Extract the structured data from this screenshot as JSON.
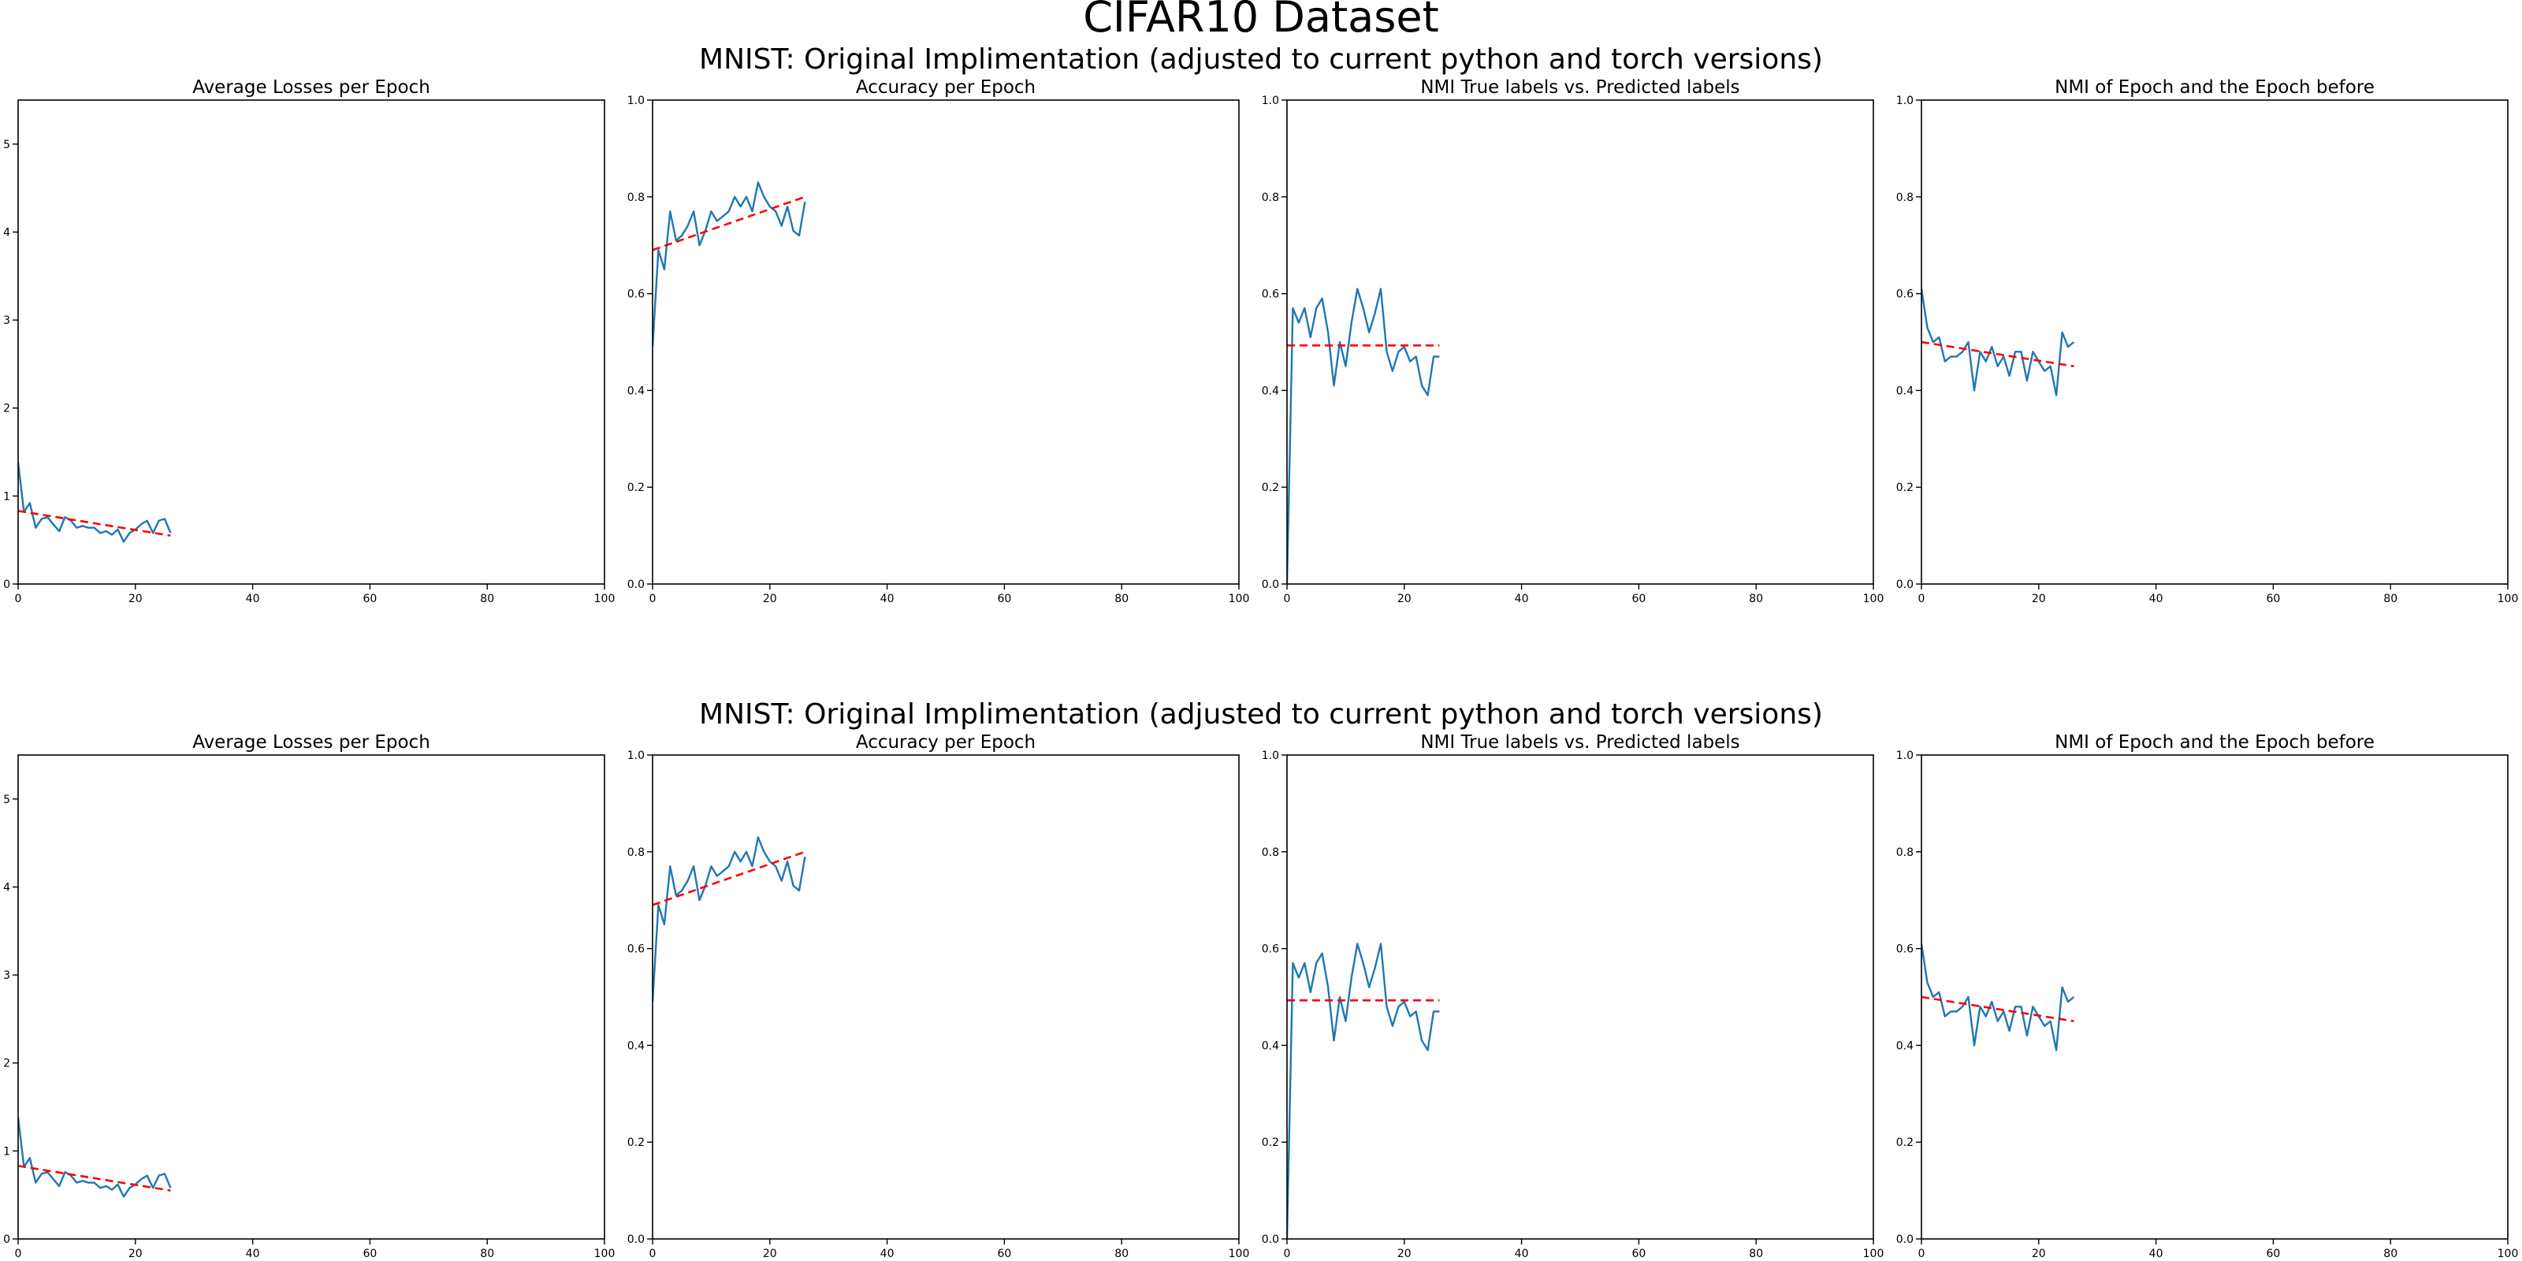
{
  "figure": {
    "title": "CIFAR10 Dataset",
    "rows": [
      {
        "title": "MNIST: Original Implimentation (adjusted to current python and torch versions)"
      },
      {
        "title": "MNIST: Original Implimentation (adjusted to current python and torch versions)"
      }
    ]
  },
  "colors": {
    "series": "#1f77b4",
    "trend": "#ff0000"
  },
  "chart_data": [
    {
      "type": "line",
      "title": "Average Losses per Epoch",
      "xlim": [
        0,
        100
      ],
      "ylim": [
        0,
        5.5
      ],
      "xticks": [
        0,
        20,
        40,
        60,
        80,
        100
      ],
      "yticks": [
        0,
        1,
        2,
        3,
        4,
        5
      ],
      "series": [
        {
          "style": "solid",
          "x": [
            0,
            1,
            2,
            3,
            4,
            5,
            6,
            7,
            8,
            9,
            10,
            11,
            12,
            13,
            14,
            15,
            16,
            17,
            18,
            19,
            20,
            21,
            22,
            23,
            24,
            25,
            26
          ],
          "y": [
            1.38,
            0.82,
            0.92,
            0.64,
            0.74,
            0.76,
            0.68,
            0.6,
            0.76,
            0.72,
            0.64,
            0.66,
            0.64,
            0.64,
            0.58,
            0.6,
            0.56,
            0.62,
            0.48,
            0.58,
            0.62,
            0.68,
            0.72,
            0.58,
            0.72,
            0.74,
            0.58
          ]
        },
        {
          "style": "dashed",
          "x": [
            0,
            26
          ],
          "y": [
            0.83,
            0.55
          ]
        }
      ]
    },
    {
      "type": "line",
      "title": "Accuracy per Epoch",
      "xlim": [
        0,
        100
      ],
      "ylim": [
        0,
        1.0
      ],
      "xticks": [
        0,
        20,
        40,
        60,
        80,
        100
      ],
      "yticks": [
        0.0,
        0.2,
        0.4,
        0.6,
        0.8,
        1.0
      ],
      "series": [
        {
          "style": "solid",
          "x": [
            0,
            1,
            2,
            3,
            4,
            5,
            6,
            7,
            8,
            9,
            10,
            11,
            12,
            13,
            14,
            15,
            16,
            17,
            18,
            19,
            20,
            21,
            22,
            23,
            24,
            25,
            26
          ],
          "y": [
            0.49,
            0.69,
            0.65,
            0.77,
            0.71,
            0.72,
            0.74,
            0.77,
            0.7,
            0.73,
            0.77,
            0.75,
            0.76,
            0.77,
            0.8,
            0.78,
            0.8,
            0.77,
            0.83,
            0.8,
            0.78,
            0.77,
            0.74,
            0.78,
            0.73,
            0.72,
            0.79
          ]
        },
        {
          "style": "dashed",
          "x": [
            0,
            26
          ],
          "y": [
            0.69,
            0.8
          ]
        }
      ]
    },
    {
      "type": "line",
      "title": "NMI True labels vs. Predicted labels",
      "xlim": [
        0,
        100
      ],
      "ylim": [
        0,
        1.0
      ],
      "xticks": [
        0,
        20,
        40,
        60,
        80,
        100
      ],
      "yticks": [
        0.0,
        0.2,
        0.4,
        0.6,
        0.8,
        1.0
      ],
      "series": [
        {
          "style": "solid",
          "x": [
            0,
            1,
            2,
            3,
            4,
            5,
            6,
            7,
            8,
            9,
            10,
            11,
            12,
            13,
            14,
            15,
            16,
            17,
            18,
            19,
            20,
            21,
            22,
            23,
            24,
            25,
            26
          ],
          "y": [
            0.0,
            0.57,
            0.54,
            0.57,
            0.51,
            0.57,
            0.59,
            0.52,
            0.41,
            0.5,
            0.45,
            0.54,
            0.61,
            0.57,
            0.52,
            0.56,
            0.61,
            0.48,
            0.44,
            0.48,
            0.49,
            0.46,
            0.47,
            0.41,
            0.39,
            0.47,
            0.47
          ]
        },
        {
          "style": "dashed",
          "x": [
            0,
            26
          ],
          "y": [
            0.493,
            0.493
          ]
        }
      ]
    },
    {
      "type": "line",
      "title": "NMI of Epoch and the Epoch before",
      "xlim": [
        0,
        100
      ],
      "ylim": [
        0,
        1.0
      ],
      "xticks": [
        0,
        20,
        40,
        60,
        80,
        100
      ],
      "yticks": [
        0.0,
        0.2,
        0.4,
        0.6,
        0.8,
        1.0
      ],
      "series": [
        {
          "style": "solid",
          "x": [
            0,
            1,
            2,
            3,
            4,
            5,
            6,
            7,
            8,
            9,
            10,
            11,
            12,
            13,
            14,
            15,
            16,
            17,
            18,
            19,
            20,
            21,
            22,
            23,
            24,
            25,
            26
          ],
          "y": [
            0.61,
            0.53,
            0.5,
            0.51,
            0.46,
            0.47,
            0.47,
            0.48,
            0.5,
            0.4,
            0.48,
            0.46,
            0.49,
            0.45,
            0.47,
            0.43,
            0.48,
            0.48,
            0.42,
            0.48,
            0.46,
            0.44,
            0.45,
            0.39,
            0.52,
            0.49,
            0.5
          ]
        },
        {
          "style": "dashed",
          "x": [
            0,
            26
          ],
          "y": [
            0.5,
            0.45
          ]
        }
      ]
    },
    {
      "type": "line",
      "title": "Average Losses per Epoch",
      "xlim": [
        0,
        100
      ],
      "ylim": [
        0,
        5.5
      ],
      "xticks": [
        0,
        20,
        40,
        60,
        80,
        100
      ],
      "yticks": [
        0,
        1,
        2,
        3,
        4,
        5
      ],
      "series": [
        {
          "style": "solid",
          "x": [
            0,
            1,
            2,
            3,
            4,
            5,
            6,
            7,
            8,
            9,
            10,
            11,
            12,
            13,
            14,
            15,
            16,
            17,
            18,
            19,
            20,
            21,
            22,
            23,
            24,
            25,
            26
          ],
          "y": [
            1.38,
            0.82,
            0.92,
            0.64,
            0.74,
            0.76,
            0.68,
            0.6,
            0.76,
            0.72,
            0.64,
            0.66,
            0.64,
            0.64,
            0.58,
            0.6,
            0.56,
            0.62,
            0.48,
            0.58,
            0.62,
            0.68,
            0.72,
            0.58,
            0.72,
            0.74,
            0.58
          ]
        },
        {
          "style": "dashed",
          "x": [
            0,
            26
          ],
          "y": [
            0.83,
            0.55
          ]
        }
      ]
    },
    {
      "type": "line",
      "title": "Accuracy per Epoch",
      "xlim": [
        0,
        100
      ],
      "ylim": [
        0,
        1.0
      ],
      "xticks": [
        0,
        20,
        40,
        60,
        80,
        100
      ],
      "yticks": [
        0.0,
        0.2,
        0.4,
        0.6,
        0.8,
        1.0
      ],
      "series": [
        {
          "style": "solid",
          "x": [
            0,
            1,
            2,
            3,
            4,
            5,
            6,
            7,
            8,
            9,
            10,
            11,
            12,
            13,
            14,
            15,
            16,
            17,
            18,
            19,
            20,
            21,
            22,
            23,
            24,
            25,
            26
          ],
          "y": [
            0.49,
            0.69,
            0.65,
            0.77,
            0.71,
            0.72,
            0.74,
            0.77,
            0.7,
            0.73,
            0.77,
            0.75,
            0.76,
            0.77,
            0.8,
            0.78,
            0.8,
            0.77,
            0.83,
            0.8,
            0.78,
            0.77,
            0.74,
            0.78,
            0.73,
            0.72,
            0.79
          ]
        },
        {
          "style": "dashed",
          "x": [
            0,
            26
          ],
          "y": [
            0.69,
            0.8
          ]
        }
      ]
    },
    {
      "type": "line",
      "title": "NMI True labels vs. Predicted labels",
      "xlim": [
        0,
        100
      ],
      "ylim": [
        0,
        1.0
      ],
      "xticks": [
        0,
        20,
        40,
        60,
        80,
        100
      ],
      "yticks": [
        0.0,
        0.2,
        0.4,
        0.6,
        0.8,
        1.0
      ],
      "series": [
        {
          "style": "solid",
          "x": [
            0,
            1,
            2,
            3,
            4,
            5,
            6,
            7,
            8,
            9,
            10,
            11,
            12,
            13,
            14,
            15,
            16,
            17,
            18,
            19,
            20,
            21,
            22,
            23,
            24,
            25,
            26
          ],
          "y": [
            0.0,
            0.57,
            0.54,
            0.57,
            0.51,
            0.57,
            0.59,
            0.52,
            0.41,
            0.5,
            0.45,
            0.54,
            0.61,
            0.57,
            0.52,
            0.56,
            0.61,
            0.48,
            0.44,
            0.48,
            0.49,
            0.46,
            0.47,
            0.41,
            0.39,
            0.47,
            0.47
          ]
        },
        {
          "style": "dashed",
          "x": [
            0,
            26
          ],
          "y": [
            0.493,
            0.493
          ]
        }
      ]
    },
    {
      "type": "line",
      "title": "NMI of Epoch and the Epoch before",
      "xlim": [
        0,
        100
      ],
      "ylim": [
        0,
        1.0
      ],
      "xticks": [
        0,
        20,
        40,
        60,
        80,
        100
      ],
      "yticks": [
        0.0,
        0.2,
        0.4,
        0.6,
        0.8,
        1.0
      ],
      "series": [
        {
          "style": "solid",
          "x": [
            0,
            1,
            2,
            3,
            4,
            5,
            6,
            7,
            8,
            9,
            10,
            11,
            12,
            13,
            14,
            15,
            16,
            17,
            18,
            19,
            20,
            21,
            22,
            23,
            24,
            25,
            26
          ],
          "y": [
            0.61,
            0.53,
            0.5,
            0.51,
            0.46,
            0.47,
            0.47,
            0.48,
            0.5,
            0.4,
            0.48,
            0.46,
            0.49,
            0.45,
            0.47,
            0.43,
            0.48,
            0.48,
            0.42,
            0.48,
            0.46,
            0.44,
            0.45,
            0.39,
            0.52,
            0.49,
            0.5
          ]
        },
        {
          "style": "dashed",
          "x": [
            0,
            26
          ],
          "y": [
            0.5,
            0.45
          ]
        }
      ]
    }
  ]
}
